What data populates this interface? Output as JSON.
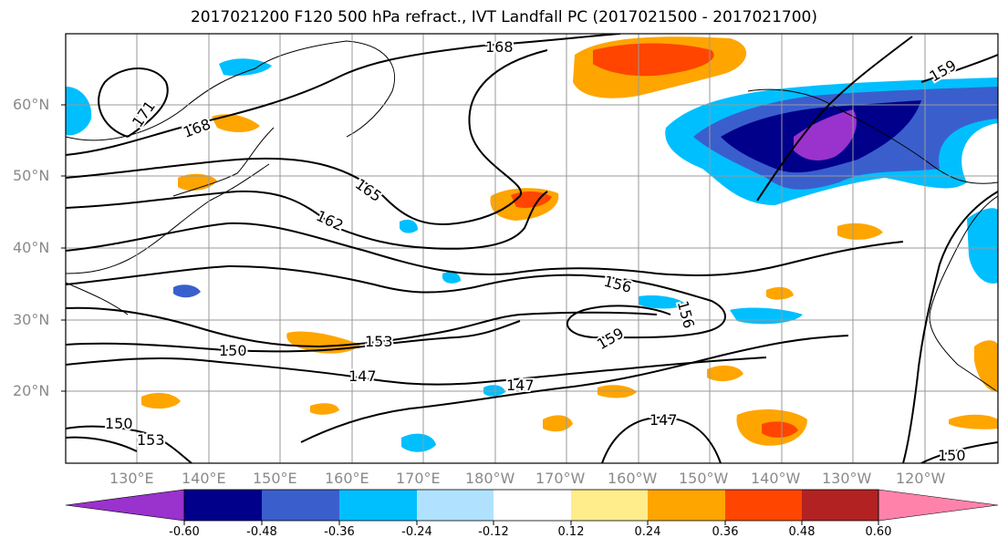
{
  "title": "2017021200 F120 500 hPa refract., IVT Landfall PC (2017021500 - 2017021700)",
  "lat_labels": [
    "60°N",
    "50°N",
    "40°N",
    "30°N",
    "20°N"
  ],
  "lon_labels": [
    "130°E",
    "140°E",
    "150°E",
    "160°E",
    "170°E",
    "180°W",
    "170°W",
    "160°W",
    "150°W",
    "140°W",
    "130°W",
    "120°W"
  ],
  "contour_labels": [
    "171",
    "168",
    "168",
    "165",
    "162",
    "156",
    "156",
    "159",
    "153",
    "150",
    "147",
    "147",
    "147",
    "150",
    "153",
    "159",
    "150"
  ],
  "colorbar": {
    "ticks": [
      "-0.60",
      "-0.48",
      "-0.36",
      "-0.24",
      "-0.12",
      "0.12",
      "0.24",
      "0.36",
      "0.48",
      "0.60"
    ],
    "colors": [
      "#9a32cd",
      "#00008b",
      "#3a5fcd",
      "#00bfff",
      "#b0e2ff",
      "#ffffff",
      "#ffec8b",
      "#ffa500",
      "#ff4500",
      "#b22222",
      "#ff82ab"
    ]
  }
}
